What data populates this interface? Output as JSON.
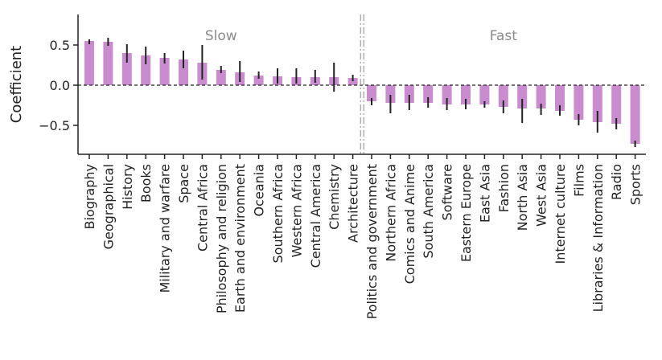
{
  "chart_data": {
    "type": "bar",
    "title": "",
    "xlabel": "",
    "ylabel": "Coefficient",
    "ylim": [
      -0.85,
      0.85
    ],
    "yticks": [
      -0.5,
      0.0,
      0.5
    ],
    "ytick_labels": [
      "−0.5",
      "0.0",
      "0.5"
    ],
    "categories": [
      "Biography",
      "Geographical",
      "History",
      "Books",
      "Military and warfare",
      "Space",
      "Central Africa",
      "Philosophy and religion",
      "Earth and environment",
      "Oceania",
      "Southern Africa",
      "Western Africa",
      "Central America",
      "Chemistry",
      "Architecture",
      "Politics and government",
      "Northern Africa",
      "Comics and Anime",
      "South America",
      "Software",
      "Eastern Europe",
      "East Asia",
      "Fashion",
      "North Asia",
      "West Asia",
      "Internet culture",
      "Films",
      "Libraries & Information",
      "Radio",
      "Sports"
    ],
    "values": [
      0.55,
      0.54,
      0.4,
      0.37,
      0.34,
      0.32,
      0.28,
      0.19,
      0.16,
      0.12,
      0.11,
      0.1,
      0.1,
      0.1,
      0.09,
      -0.2,
      -0.22,
      -0.22,
      -0.22,
      -0.24,
      -0.24,
      -0.24,
      -0.27,
      -0.29,
      -0.29,
      -0.32,
      -0.43,
      -0.46,
      -0.48,
      -0.73
    ],
    "err_low": [
      0.51,
      0.49,
      0.28,
      0.26,
      0.27,
      0.21,
      0.07,
      0.15,
      0.04,
      0.08,
      0.02,
      0.02,
      0.03,
      -0.08,
      0.05,
      -0.25,
      -0.35,
      -0.31,
      -0.28,
      -0.31,
      -0.3,
      -0.28,
      -0.35,
      -0.47,
      -0.37,
      -0.38,
      -0.5,
      -0.59,
      -0.55,
      -0.77
    ],
    "err_high": [
      0.57,
      0.59,
      0.51,
      0.48,
      0.4,
      0.43,
      0.5,
      0.24,
      0.3,
      0.17,
      0.21,
      0.21,
      0.19,
      0.28,
      0.13,
      -0.16,
      -0.12,
      -0.12,
      -0.15,
      -0.16,
      -0.17,
      -0.2,
      -0.19,
      -0.17,
      -0.23,
      -0.25,
      -0.36,
      -0.32,
      -0.41,
      -0.69
    ],
    "bar_color": "#c98ccf",
    "errorbar_color": "#222222",
    "groups": [
      {
        "label": "Slow",
        "start": 0,
        "end": 14
      },
      {
        "label": "Fast",
        "start": 15,
        "end": 29
      }
    ],
    "reference_line": {
      "y": 0.0,
      "style": "dashed"
    },
    "divider": {
      "between": [
        14,
        15
      ],
      "style": "dash-dot",
      "color": "#aaaaaa"
    },
    "grid": false,
    "legend": "none"
  }
}
